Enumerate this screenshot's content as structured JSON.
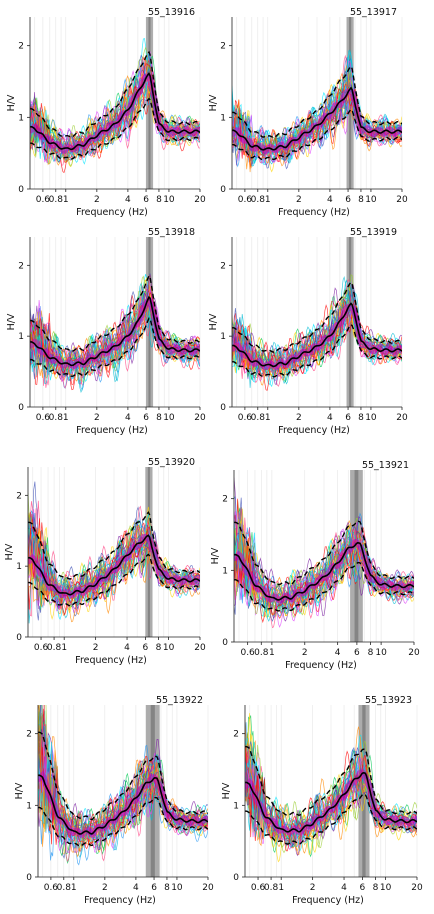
{
  "figure": {
    "background": "#ffffff",
    "trace_colors": [
      "#ff0000",
      "#ff8800",
      "#ffd400",
      "#9acd32",
      "#00c853",
      "#00bcd4",
      "#2196f3",
      "#3f51b5",
      "#7b1fa2",
      "#e040fb",
      "#ff4081",
      "#00e5ff"
    ]
  },
  "chart_data": [
    {
      "type": "line",
      "title": "55_13916",
      "xlabel": "Frequency (Hz)",
      "ylabel": "H/V",
      "xscale": "log",
      "xlim": [
        0.45,
        20
      ],
      "ylim": [
        0,
        2.4
      ],
      "xticks": [
        "0.6",
        "0.8",
        "1",
        "2",
        "4",
        "6",
        "8",
        "10",
        "20"
      ],
      "yticks": [
        "0",
        "1",
        "2"
      ],
      "peak_band_hz": [
        6.0,
        7.0
      ],
      "series": [
        {
          "role": "mean",
          "x": [
            0.5,
            0.7,
            1,
            1.5,
            2,
            3,
            4,
            5,
            6,
            6.5,
            7,
            8,
            10,
            14,
            20
          ],
          "values": [
            0.85,
            0.65,
            0.55,
            0.62,
            0.75,
            0.9,
            1.1,
            1.35,
            1.55,
            1.6,
            1.35,
            0.9,
            0.8,
            0.8,
            0.8
          ]
        },
        {
          "role": "mean+std",
          "x": [
            0.5,
            0.7,
            1,
            1.5,
            2,
            3,
            4,
            5,
            6,
            6.5,
            7,
            8,
            10,
            14,
            20
          ],
          "values": [
            1.1,
            0.85,
            0.72,
            0.8,
            0.95,
            1.12,
            1.4,
            1.65,
            1.85,
            1.9,
            1.6,
            1.05,
            0.93,
            0.92,
            0.92
          ]
        },
        {
          "role": "mean-std",
          "x": [
            0.5,
            0.7,
            1,
            1.5,
            2,
            3,
            4,
            5,
            6,
            6.5,
            7,
            8,
            10,
            14,
            20
          ],
          "values": [
            0.62,
            0.5,
            0.42,
            0.48,
            0.58,
            0.7,
            0.85,
            1.05,
            1.2,
            1.25,
            1.1,
            0.78,
            0.68,
            0.7,
            0.7
          ]
        }
      ]
    },
    {
      "type": "line",
      "title": "55_13917",
      "xlabel": "Frequency (Hz)",
      "ylabel": "H/V",
      "xscale": "log",
      "xlim": [
        0.45,
        20
      ],
      "ylim": [
        0,
        2.4
      ],
      "xticks": [
        "0.6",
        "0.8",
        "1",
        "2",
        "4",
        "6",
        "8",
        "10",
        "20"
      ],
      "yticks": [
        "0",
        "1",
        "2"
      ],
      "peak_band_hz": [
        5.8,
        6.8
      ],
      "series": [
        {
          "role": "mean",
          "x": [
            0.5,
            0.7,
            1,
            1.5,
            2,
            3,
            4,
            5,
            6,
            6.5,
            7,
            8,
            10,
            14,
            20
          ],
          "values": [
            0.8,
            0.6,
            0.55,
            0.6,
            0.72,
            0.88,
            1.05,
            1.2,
            1.35,
            1.4,
            1.2,
            0.85,
            0.8,
            0.8,
            0.8
          ]
        },
        {
          "role": "mean+std",
          "x": [
            0.5,
            0.7,
            1,
            1.5,
            2,
            3,
            4,
            5,
            6,
            6.5,
            7,
            8,
            10,
            14,
            20
          ],
          "values": [
            1.05,
            0.8,
            0.72,
            0.78,
            0.9,
            1.08,
            1.3,
            1.5,
            1.65,
            1.7,
            1.45,
            1.0,
            0.92,
            0.92,
            0.92
          ]
        },
        {
          "role": "mean-std",
          "x": [
            0.5,
            0.7,
            1,
            1.5,
            2,
            3,
            4,
            5,
            6,
            6.5,
            7,
            8,
            10,
            14,
            20
          ],
          "values": [
            0.6,
            0.45,
            0.42,
            0.46,
            0.56,
            0.68,
            0.82,
            0.95,
            1.05,
            1.1,
            0.98,
            0.72,
            0.68,
            0.7,
            0.7
          ]
        }
      ]
    },
    {
      "type": "line",
      "title": "55_13918",
      "xlabel": "Frequency (Hz)",
      "ylabel": "H/V",
      "xscale": "log",
      "xlim": [
        0.45,
        20
      ],
      "ylim": [
        0,
        2.4
      ],
      "xticks": [
        "0.6",
        "0.8",
        "1",
        "2",
        "4",
        "6",
        "8",
        "10",
        "20"
      ],
      "yticks": [
        "0",
        "1",
        "2"
      ],
      "peak_band_hz": [
        6.0,
        7.0
      ],
      "series": [
        {
          "role": "mean",
          "x": [
            0.5,
            0.7,
            1,
            1.5,
            2,
            3,
            4,
            5,
            6,
            6.5,
            7,
            8,
            10,
            14,
            20
          ],
          "values": [
            0.9,
            0.7,
            0.6,
            0.62,
            0.72,
            0.85,
            1.0,
            1.2,
            1.45,
            1.55,
            1.35,
            0.95,
            0.82,
            0.8,
            0.8
          ]
        },
        {
          "role": "mean+std",
          "x": [
            0.5,
            0.7,
            1,
            1.5,
            2,
            3,
            4,
            5,
            6,
            6.5,
            7,
            8,
            10,
            14,
            20
          ],
          "values": [
            1.2,
            0.95,
            0.8,
            0.82,
            0.95,
            1.1,
            1.3,
            1.5,
            1.75,
            1.85,
            1.6,
            1.1,
            0.95,
            0.92,
            0.92
          ]
        },
        {
          "role": "mean-std",
          "x": [
            0.5,
            0.7,
            1,
            1.5,
            2,
            3,
            4,
            5,
            6,
            6.5,
            7,
            8,
            10,
            14,
            20
          ],
          "values": [
            0.65,
            0.52,
            0.45,
            0.46,
            0.55,
            0.65,
            0.78,
            0.95,
            1.15,
            1.25,
            1.1,
            0.8,
            0.7,
            0.7,
            0.7
          ]
        }
      ]
    },
    {
      "type": "line",
      "title": "55_13919",
      "xlabel": "Frequency (Hz)",
      "ylabel": "H/V",
      "xscale": "log",
      "xlim": [
        0.45,
        20
      ],
      "ylim": [
        0,
        2.4
      ],
      "xticks": [
        "0.6",
        "0.8",
        "1",
        "2",
        "4",
        "6",
        "8",
        "10",
        "20"
      ],
      "yticks": [
        "0",
        "1",
        "2"
      ],
      "peak_band_hz": [
        5.8,
        6.8
      ],
      "series": [
        {
          "role": "mean",
          "x": [
            0.5,
            0.7,
            1,
            1.5,
            2,
            3,
            4,
            5,
            6,
            6.5,
            7,
            8,
            10,
            14,
            20
          ],
          "values": [
            0.85,
            0.65,
            0.58,
            0.62,
            0.72,
            0.85,
            1.0,
            1.2,
            1.4,
            1.45,
            1.3,
            0.92,
            0.82,
            0.8,
            0.8
          ]
        },
        {
          "role": "mean+std",
          "x": [
            0.5,
            0.7,
            1,
            1.5,
            2,
            3,
            4,
            5,
            6,
            6.5,
            7,
            8,
            10,
            14,
            20
          ],
          "values": [
            1.1,
            0.88,
            0.78,
            0.82,
            0.92,
            1.08,
            1.28,
            1.5,
            1.7,
            1.75,
            1.55,
            1.08,
            0.95,
            0.92,
            0.92
          ]
        },
        {
          "role": "mean-std",
          "x": [
            0.5,
            0.7,
            1,
            1.5,
            2,
            3,
            4,
            5,
            6,
            6.5,
            7,
            8,
            10,
            14,
            20
          ],
          "values": [
            0.62,
            0.48,
            0.44,
            0.46,
            0.55,
            0.65,
            0.78,
            0.95,
            1.1,
            1.15,
            1.05,
            0.78,
            0.7,
            0.7,
            0.7
          ]
        }
      ]
    },
    {
      "type": "line",
      "title": "55_13920",
      "xlabel": "Frequency (Hz)",
      "ylabel": "H/V",
      "xscale": "log",
      "xlim": [
        0.45,
        20
      ],
      "ylim": [
        0,
        2.4
      ],
      "xticks": [
        "0.6",
        "0.8",
        "1",
        "2",
        "4",
        "6",
        "8",
        "10",
        "20"
      ],
      "yticks": [
        "0",
        "1",
        "2"
      ],
      "peak_band_hz": [
        6.0,
        7.0
      ],
      "series": [
        {
          "role": "mean",
          "x": [
            0.5,
            0.7,
            1,
            1.5,
            2,
            3,
            4,
            5,
            6,
            6.5,
            7,
            8,
            10,
            14,
            20
          ],
          "values": [
            1.1,
            0.75,
            0.6,
            0.65,
            0.75,
            0.95,
            1.15,
            1.3,
            1.4,
            1.42,
            1.25,
            0.95,
            0.82,
            0.8,
            0.8
          ]
        },
        {
          "role": "mean+std",
          "x": [
            0.5,
            0.7,
            1,
            1.5,
            2,
            3,
            4,
            5,
            6,
            6.5,
            7,
            8,
            10,
            14,
            20
          ],
          "values": [
            1.6,
            1.05,
            0.82,
            0.88,
            1.0,
            1.2,
            1.45,
            1.6,
            1.7,
            1.75,
            1.5,
            1.12,
            0.95,
            0.92,
            0.92
          ]
        },
        {
          "role": "mean-std",
          "x": [
            0.5,
            0.7,
            1,
            1.5,
            2,
            3,
            4,
            5,
            6,
            6.5,
            7,
            8,
            10,
            14,
            20
          ],
          "values": [
            0.75,
            0.52,
            0.45,
            0.48,
            0.56,
            0.72,
            0.88,
            1.02,
            1.12,
            1.15,
            1.02,
            0.8,
            0.7,
            0.7,
            0.7
          ]
        }
      ]
    },
    {
      "type": "line",
      "title": "55_13921",
      "xlabel": "Frequency (Hz)",
      "ylabel": "H/V",
      "xscale": "log",
      "xlim": [
        0.45,
        20
      ],
      "ylim": [
        0,
        2.4
      ],
      "xticks": [
        "0.6",
        "0.8",
        "1",
        "2",
        "4",
        "6",
        "8",
        "10",
        "20"
      ],
      "yticks": [
        "0",
        "1",
        "2"
      ],
      "peak_band_hz": [
        5.2,
        6.8
      ],
      "series": [
        {
          "role": "mean",
          "x": [
            0.5,
            0.7,
            1,
            1.5,
            2,
            3,
            4,
            5,
            6,
            6.5,
            7,
            8,
            10,
            14,
            20
          ],
          "values": [
            1.2,
            0.8,
            0.6,
            0.62,
            0.72,
            0.9,
            1.1,
            1.3,
            1.38,
            1.35,
            1.2,
            0.92,
            0.8,
            0.78,
            0.78
          ]
        },
        {
          "role": "mean+std",
          "x": [
            0.5,
            0.7,
            1,
            1.5,
            2,
            3,
            4,
            5,
            6,
            6.5,
            7,
            8,
            10,
            14,
            20
          ],
          "values": [
            1.65,
            1.1,
            0.82,
            0.82,
            0.95,
            1.15,
            1.38,
            1.6,
            1.68,
            1.65,
            1.45,
            1.08,
            0.92,
            0.9,
            0.9
          ]
        },
        {
          "role": "mean-std",
          "x": [
            0.5,
            0.7,
            1,
            1.5,
            2,
            3,
            4,
            5,
            6,
            6.5,
            7,
            8,
            10,
            14,
            20
          ],
          "values": [
            0.85,
            0.55,
            0.45,
            0.46,
            0.54,
            0.68,
            0.85,
            1.02,
            1.1,
            1.08,
            0.98,
            0.78,
            0.68,
            0.68,
            0.68
          ]
        }
      ]
    },
    {
      "type": "line",
      "title": "55_13922",
      "xlabel": "Frequency (Hz)",
      "ylabel": "H/V",
      "xscale": "log",
      "xlim": [
        0.45,
        20
      ],
      "ylim": [
        0,
        2.4
      ],
      "xticks": [
        "0.6",
        "0.8",
        "1",
        "2",
        "4",
        "6",
        "8",
        "10",
        "20"
      ],
      "yticks": [
        "0",
        "1",
        "2"
      ],
      "peak_band_hz": [
        5.0,
        6.8
      ],
      "series": [
        {
          "role": "mean",
          "x": [
            0.5,
            0.7,
            1,
            1.5,
            2,
            3,
            4,
            5,
            6,
            6.5,
            7,
            8,
            10,
            14,
            20
          ],
          "values": [
            1.4,
            0.85,
            0.62,
            0.62,
            0.72,
            0.9,
            1.1,
            1.3,
            1.38,
            1.35,
            1.2,
            0.9,
            0.8,
            0.78,
            0.78
          ]
        },
        {
          "role": "mean+std",
          "x": [
            0.5,
            0.7,
            1,
            1.5,
            2,
            3,
            4,
            5,
            6,
            6.5,
            7,
            8,
            10,
            14,
            20
          ],
          "values": [
            2.0,
            1.2,
            0.85,
            0.82,
            0.95,
            1.15,
            1.4,
            1.6,
            1.68,
            1.65,
            1.45,
            1.05,
            0.92,
            0.9,
            0.9
          ]
        },
        {
          "role": "mean-std",
          "x": [
            0.5,
            0.7,
            1,
            1.5,
            2,
            3,
            4,
            5,
            6,
            6.5,
            7,
            8,
            10,
            14,
            20
          ],
          "values": [
            0.95,
            0.58,
            0.45,
            0.46,
            0.54,
            0.68,
            0.85,
            1.02,
            1.1,
            1.08,
            0.98,
            0.76,
            0.68,
            0.68,
            0.68
          ]
        }
      ]
    },
    {
      "type": "line",
      "title": "55_13923",
      "xlabel": "Frequency (Hz)",
      "ylabel": "H/V",
      "xscale": "log",
      "xlim": [
        0.45,
        20
      ],
      "ylim": [
        0,
        2.4
      ],
      "xticks": [
        "0.6",
        "0.8",
        "1",
        "2",
        "4",
        "6",
        "8",
        "10",
        "20"
      ],
      "yticks": [
        "0",
        "1",
        "2"
      ],
      "peak_band_hz": [
        5.5,
        7.0
      ],
      "series": [
        {
          "role": "mean",
          "x": [
            0.5,
            0.7,
            1,
            1.5,
            2,
            3,
            4,
            5,
            6,
            6.5,
            7,
            8,
            10,
            14,
            20
          ],
          "values": [
            1.3,
            0.85,
            0.65,
            0.65,
            0.75,
            0.95,
            1.15,
            1.35,
            1.45,
            1.42,
            1.25,
            0.92,
            0.8,
            0.78,
            0.78
          ]
        },
        {
          "role": "mean+std",
          "x": [
            0.5,
            0.7,
            1,
            1.5,
            2,
            3,
            4,
            5,
            6,
            6.5,
            7,
            8,
            10,
            14,
            20
          ],
          "values": [
            1.8,
            1.15,
            0.88,
            0.88,
            1.0,
            1.2,
            1.45,
            1.68,
            1.78,
            1.75,
            1.52,
            1.08,
            0.92,
            0.9,
            0.9
          ]
        },
        {
          "role": "mean-std",
          "x": [
            0.5,
            0.7,
            1,
            1.5,
            2,
            3,
            4,
            5,
            6,
            6.5,
            7,
            8,
            10,
            14,
            20
          ],
          "values": [
            0.9,
            0.6,
            0.48,
            0.48,
            0.56,
            0.72,
            0.9,
            1.05,
            1.15,
            1.12,
            1.0,
            0.78,
            0.68,
            0.68,
            0.68
          ]
        }
      ]
    }
  ]
}
